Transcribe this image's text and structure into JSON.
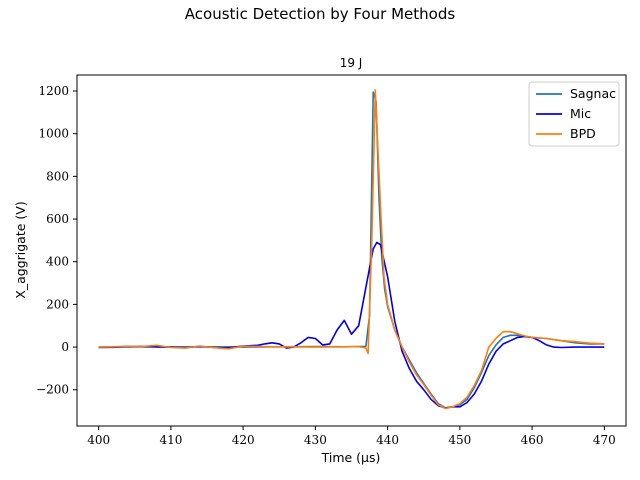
{
  "chart_data": {
    "type": "line",
    "suptitle": "Acoustic Detection by Four Methods",
    "title": "19 J",
    "xlabel": "Time (μs)",
    "ylabel": "X_aggrigate (V)",
    "xlim": [
      397,
      473
    ],
    "ylim": [
      -370,
      1275
    ],
    "xticks": [
      400,
      410,
      420,
      430,
      440,
      450,
      460,
      470
    ],
    "yticks": [
      -200,
      0,
      200,
      400,
      600,
      800,
      1000,
      1200
    ],
    "grid": false,
    "legend_position": "top-right",
    "series": [
      {
        "name": "Sagnac",
        "color": "#1f77b4",
        "x": [
          400,
          405,
          410,
          415,
          420,
          425,
          430,
          434,
          436,
          437,
          437.5,
          438,
          438.4,
          438.8,
          439.2,
          439.6,
          440,
          441,
          442,
          443,
          444,
          445,
          446,
          447,
          448,
          449,
          450,
          451,
          452,
          453,
          454,
          455,
          456,
          457,
          458,
          459,
          460,
          462,
          464,
          466,
          468,
          470
        ],
        "y": [
          0,
          1,
          0,
          1,
          0,
          1,
          2,
          1,
          2,
          3,
          150,
          1195,
          1150,
          700,
          420,
          270,
          190,
          80,
          0,
          -60,
          -120,
          -170,
          -220,
          -265,
          -285,
          -280,
          -270,
          -245,
          -190,
          -120,
          -40,
          10,
          45,
          55,
          55,
          50,
          45,
          40,
          30,
          20,
          15,
          15
        ]
      },
      {
        "name": "Mic",
        "color": "#0000ee",
        "x": [
          400,
          402,
          404,
          406,
          408,
          410,
          412,
          414,
          416,
          418,
          420,
          422,
          423,
          424,
          425,
          426,
          427,
          428,
          429,
          430,
          431,
          432,
          433,
          434,
          435,
          436,
          437,
          438,
          438.5,
          439,
          440,
          441,
          442,
          443,
          444,
          445,
          446,
          447,
          448,
          449,
          450,
          451,
          452,
          453,
          454,
          455,
          456,
          457,
          458,
          459,
          460,
          461,
          462,
          463,
          464,
          466,
          468,
          470
        ],
        "y": [
          -2,
          -1,
          2,
          3,
          1,
          0,
          -2,
          3,
          -2,
          -3,
          5,
          8,
          15,
          20,
          15,
          -5,
          0,
          20,
          45,
          40,
          10,
          15,
          80,
          125,
          60,
          100,
          280,
          460,
          490,
          480,
          330,
          120,
          -20,
          -100,
          -160,
          -200,
          -245,
          -275,
          -285,
          -280,
          -280,
          -260,
          -220,
          -160,
          -80,
          -20,
          15,
          30,
          45,
          50,
          45,
          30,
          10,
          0,
          -2,
          0,
          0,
          0
        ]
      },
      {
        "name": "BPD",
        "color": "#ff7f0e",
        "x": [
          400,
          402,
          404,
          406,
          408,
          410,
          412,
          414,
          416,
          418,
          420,
          425,
          430,
          434,
          436,
          437,
          437.3,
          437.8,
          438.3,
          438.7,
          439.1,
          439.5,
          440,
          441,
          442,
          443,
          444,
          445,
          446,
          447,
          448,
          449,
          450,
          451,
          452,
          453,
          454,
          455,
          456,
          457,
          458,
          459,
          460,
          462,
          464,
          466,
          468,
          470
        ],
        "y": [
          0,
          1,
          4,
          2,
          8,
          -2,
          -5,
          5,
          -3,
          -8,
          4,
          1,
          0,
          1,
          2,
          -5,
          -30,
          480,
          1205,
          900,
          600,
          330,
          200,
          80,
          0,
          -70,
          -130,
          -175,
          -225,
          -270,
          -288,
          -280,
          -265,
          -235,
          -180,
          -110,
          0,
          40,
          72,
          72,
          62,
          52,
          45,
          40,
          30,
          25,
          18,
          15
        ]
      }
    ]
  }
}
